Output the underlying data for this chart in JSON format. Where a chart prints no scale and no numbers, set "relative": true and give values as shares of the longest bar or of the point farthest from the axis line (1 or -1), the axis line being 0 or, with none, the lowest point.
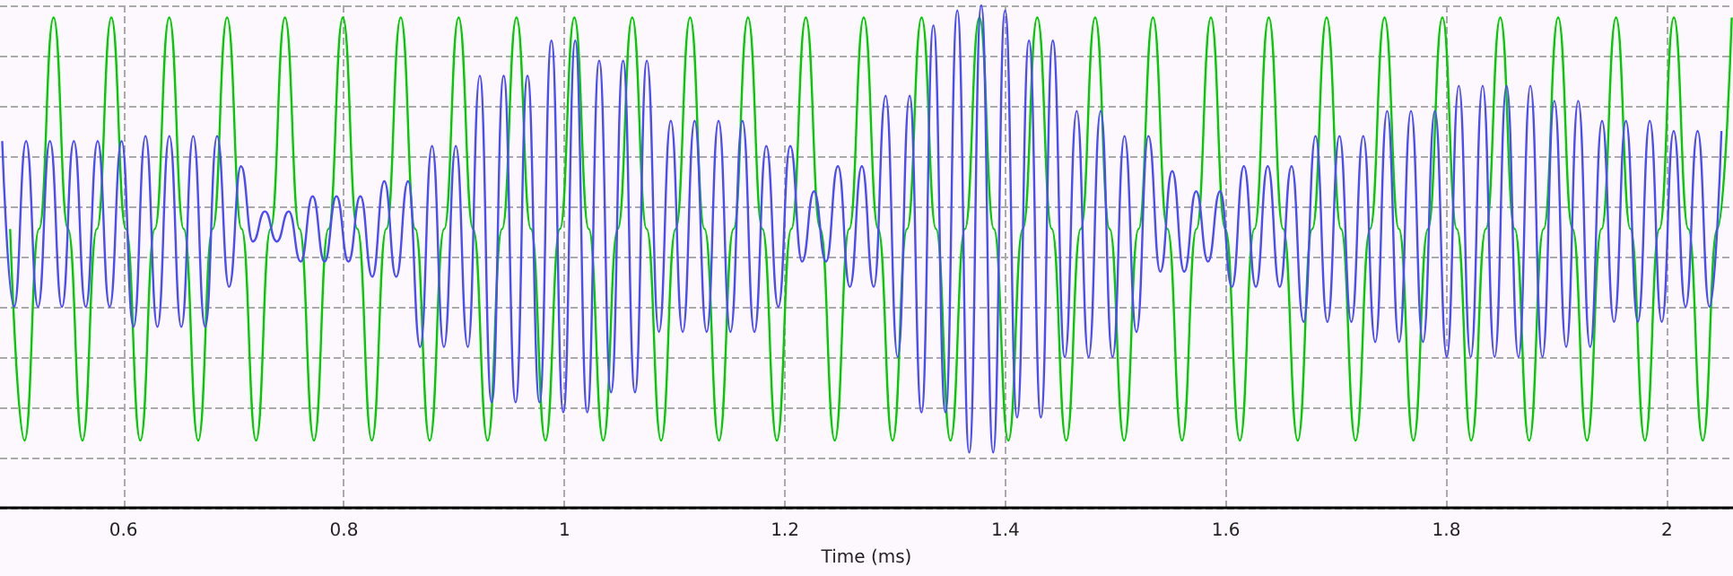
{
  "chart_data": {
    "type": "line",
    "xlabel": "Time (ms)",
    "relative": true,
    "grid": true,
    "xlim": [
      0.488,
      2.06
    ],
    "xticks": [
      0.6,
      0.8,
      1,
      1.2,
      1.4,
      1.6,
      1.8,
      2
    ],
    "series": [
      {
        "color": "#00cc00",
        "x": [
          0.4972,
          0.5103,
          0.5234,
          0.5366,
          0.5497,
          0.5628,
          0.5759,
          0.589,
          0.6022,
          0.6153,
          0.6284,
          0.6415,
          0.6547,
          0.6678,
          0.6809,
          0.694,
          0.7072,
          0.7203,
          0.7334,
          0.7465,
          0.7597,
          0.7728,
          0.7859,
          0.799,
          0.8122,
          0.8253,
          0.8384,
          0.8515,
          0.8647,
          0.8778,
          0.8909,
          0.904,
          0.9172,
          0.9303,
          0.9434,
          0.9565,
          0.9696,
          0.9828,
          0.9959,
          1.009,
          1.0221,
          1.0352,
          1.0484,
          1.0615,
          1.0746,
          1.0877,
          1.1009,
          1.114,
          1.1271,
          1.1402,
          1.1534,
          1.1665,
          1.1796,
          1.1927,
          1.2058,
          1.219,
          1.2321,
          1.2452,
          1.2583,
          1.2715,
          1.2846,
          1.2977,
          1.3108,
          1.324,
          1.3371,
          1.3502,
          1.3633,
          1.3764,
          1.3896,
          1.4027,
          1.4158,
          1.4289,
          1.4421,
          1.4552,
          1.4683,
          1.4814,
          1.4946,
          1.5077,
          1.5208,
          1.5339,
          1.547,
          1.5602,
          1.5733,
          1.5864,
          1.5995,
          1.6127,
          1.6258,
          1.6389,
          1.652,
          1.6652,
          1.6783,
          1.6914,
          1.7045,
          1.7176,
          1.7308,
          1.7439,
          1.757,
          1.7701,
          1.7833,
          1.7964,
          1.8095,
          1.8226,
          1.8358,
          1.8489,
          1.862,
          1.8751,
          1.8882,
          1.9014,
          1.9145,
          1.9276,
          1.9407,
          1.9539,
          1.967,
          1.9801,
          1.9932,
          2.0064,
          2.0195,
          2.0326,
          2.0457,
          2.0589
        ],
        "values": [
          0.555,
          0.134,
          0.555,
          0.976,
          0.555,
          0.134,
          0.555,
          0.976,
          0.555,
          0.134,
          0.555,
          0.976,
          0.555,
          0.134,
          0.555,
          0.976,
          0.555,
          0.134,
          0.555,
          0.976,
          0.555,
          0.134,
          0.555,
          0.976,
          0.555,
          0.134,
          0.555,
          0.976,
          0.555,
          0.134,
          0.555,
          0.976,
          0.555,
          0.134,
          0.555,
          0.976,
          0.555,
          0.134,
          0.555,
          0.976,
          0.555,
          0.134,
          0.555,
          0.976,
          0.555,
          0.134,
          0.555,
          0.976,
          0.555,
          0.134,
          0.555,
          0.976,
          0.555,
          0.134,
          0.555,
          0.976,
          0.555,
          0.134,
          0.555,
          0.976,
          0.555,
          0.134,
          0.555,
          0.976,
          0.555,
          0.134,
          0.555,
          0.976,
          0.555,
          0.134,
          0.555,
          0.976,
          0.555,
          0.134,
          0.555,
          0.976,
          0.555,
          0.134,
          0.555,
          0.976,
          0.555,
          0.134,
          0.555,
          0.976,
          0.555,
          0.134,
          0.555,
          0.976,
          0.555,
          0.134,
          0.555,
          0.976,
          0.555,
          0.134,
          0.555,
          0.976,
          0.555,
          0.134,
          0.555,
          0.976,
          0.555,
          0.134,
          0.555,
          0.976,
          0.555,
          0.134,
          0.555,
          0.976,
          0.555,
          0.134,
          0.555,
          0.976,
          0.555,
          0.134,
          0.555,
          0.976,
          0.555,
          0.134,
          0.555,
          0.976
        ]
      },
      {
        "color": "#4a4aff",
        "x": [
          0.49,
          0.5008,
          0.5117,
          0.5225,
          0.5333,
          0.5442,
          0.555,
          0.5658,
          0.5766,
          0.5875,
          0.5983,
          0.6091,
          0.62,
          0.6308,
          0.6416,
          0.6525,
          0.6633,
          0.6741,
          0.6849,
          0.6958,
          0.7066,
          0.7174,
          0.7283,
          0.7391,
          0.7499,
          0.7608,
          0.7716,
          0.7824,
          0.7932,
          0.8041,
          0.8149,
          0.8257,
          0.8366,
          0.8474,
          0.8582,
          0.8691,
          0.8799,
          0.8907,
          0.9015,
          0.9124,
          0.9232,
          0.934,
          0.9449,
          0.9557,
          0.9665,
          0.9774,
          0.9882,
          0.999,
          1.0098,
          1.0207,
          1.0315,
          1.0423,
          1.0532,
          1.064,
          1.0748,
          1.0857,
          1.0965,
          1.1073,
          1.1181,
          1.129,
          1.1398,
          1.1506,
          1.1615,
          1.1723,
          1.1831,
          1.194,
          1.2048,
          1.2156,
          1.2264,
          1.2373,
          1.2481,
          1.2589,
          1.2698,
          1.2806,
          1.2914,
          1.3023,
          1.3131,
          1.3239,
          1.3347,
          1.3456,
          1.3564,
          1.3672,
          1.3781,
          1.3889,
          1.3997,
          1.4106,
          1.4214,
          1.4322,
          1.443,
          1.4539,
          1.4647,
          1.4755,
          1.4864,
          1.4972,
          1.508,
          1.5189,
          1.5297,
          1.5405,
          1.5513,
          1.5622,
          1.573,
          1.5838,
          1.5947,
          1.6055,
          1.6163,
          1.6272,
          1.638,
          1.6488,
          1.6596,
          1.6705,
          1.6813,
          1.6921,
          1.703,
          1.7138,
          1.7246,
          1.7355,
          1.7463,
          1.7571,
          1.7679,
          1.7788,
          1.7896,
          1.8004,
          1.8113,
          1.8221,
          1.8329,
          1.8438,
          1.8546,
          1.8654,
          1.8762,
          1.8871,
          1.8979,
          1.9087,
          1.9196,
          1.9304,
          1.9412,
          1.9521,
          1.9629,
          1.9737,
          1.9845,
          1.9954,
          2.0062,
          2.017,
          2.0279,
          2.0387,
          2.0495
        ],
        "values": [
          0.73,
          0.4,
          0.73,
          0.4,
          0.73,
          0.4,
          0.73,
          0.4,
          0.73,
          0.4,
          0.73,
          0.36,
          0.74,
          0.36,
          0.74,
          0.36,
          0.74,
          0.36,
          0.74,
          0.44,
          0.68,
          0.53,
          0.59,
          0.53,
          0.59,
          0.49,
          0.62,
          0.49,
          0.62,
          0.49,
          0.62,
          0.46,
          0.65,
          0.46,
          0.65,
          0.32,
          0.72,
          0.32,
          0.72,
          0.32,
          0.86,
          0.21,
          0.86,
          0.21,
          0.86,
          0.21,
          0.93,
          0.19,
          0.93,
          0.19,
          0.89,
          0.23,
          0.89,
          0.23,
          0.89,
          0.35,
          0.77,
          0.35,
          0.77,
          0.35,
          0.77,
          0.35,
          0.77,
          0.35,
          0.72,
          0.4,
          0.72,
          0.49,
          0.63,
          0.49,
          0.68,
          0.44,
          0.68,
          0.44,
          0.82,
          0.3,
          0.82,
          0.19,
          0.96,
          0.19,
          0.99,
          0.11,
          1.0,
          0.11,
          0.99,
          0.18,
          0.93,
          0.18,
          0.93,
          0.3,
          0.79,
          0.3,
          0.79,
          0.3,
          0.74,
          0.35,
          0.74,
          0.47,
          0.67,
          0.47,
          0.63,
          0.49,
          0.63,
          0.44,
          0.68,
          0.44,
          0.68,
          0.44,
          0.68,
          0.37,
          0.74,
          0.37,
          0.74,
          0.37,
          0.74,
          0.33,
          0.79,
          0.33,
          0.79,
          0.33,
          0.79,
          0.3,
          0.84,
          0.3,
          0.84,
          0.3,
          0.84,
          0.3,
          0.84,
          0.3,
          0.81,
          0.32,
          0.81,
          0.32,
          0.77,
          0.37,
          0.77,
          0.37,
          0.77,
          0.37,
          0.75,
          0.4,
          0.75,
          0.4,
          0.75
        ]
      }
    ]
  }
}
